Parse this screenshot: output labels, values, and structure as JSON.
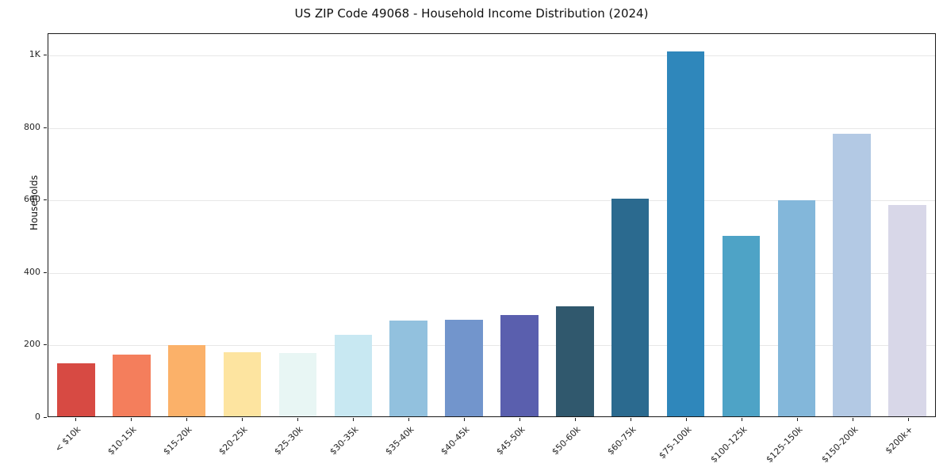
{
  "chart_data": {
    "type": "bar",
    "title": "US ZIP Code 49068 - Household Income Distribution (2024)",
    "xlabel": "",
    "ylabel": "Households",
    "ylim": [
      0,
      1060
    ],
    "grid": true,
    "legend": "none",
    "categories": [
      "< $10k",
      "$10-15k",
      "$15-20k",
      "$20-25k",
      "$25-30k",
      "$30-35k",
      "$35-40k",
      "$40-45k",
      "$45-50k",
      "$50-60k",
      "$60-75k",
      "$75-100k",
      "$100-125k",
      "$125-150k",
      "$150-200k",
      "$200k+"
    ],
    "values": [
      148,
      171,
      197,
      178,
      176,
      227,
      265,
      267,
      282,
      306,
      604,
      1012,
      500,
      600,
      784,
      587
    ],
    "bar_colors": [
      "#d74a43",
      "#f47e5c",
      "#fbb169",
      "#fde4a0",
      "#e8f6f4",
      "#c8e8f2",
      "#92c1de",
      "#7295cc",
      "#5a5fae",
      "#30586d",
      "#2b6a8f",
      "#2f87bb",
      "#4ea3c6",
      "#83b7da",
      "#b3c9e4",
      "#d8d7e8"
    ],
    "yticks": [
      {
        "value": 0,
        "label": "0"
      },
      {
        "value": 200,
        "label": "200"
      },
      {
        "value": 400,
        "label": "400"
      },
      {
        "value": 600,
        "label": "600"
      },
      {
        "value": 800,
        "label": "800"
      },
      {
        "value": 1000,
        "label": "1K"
      }
    ],
    "colors": {
      "axis": "#1a1a1a",
      "grid": "#e7e7e7",
      "text": "#262626",
      "background": "#ffffff"
    }
  }
}
